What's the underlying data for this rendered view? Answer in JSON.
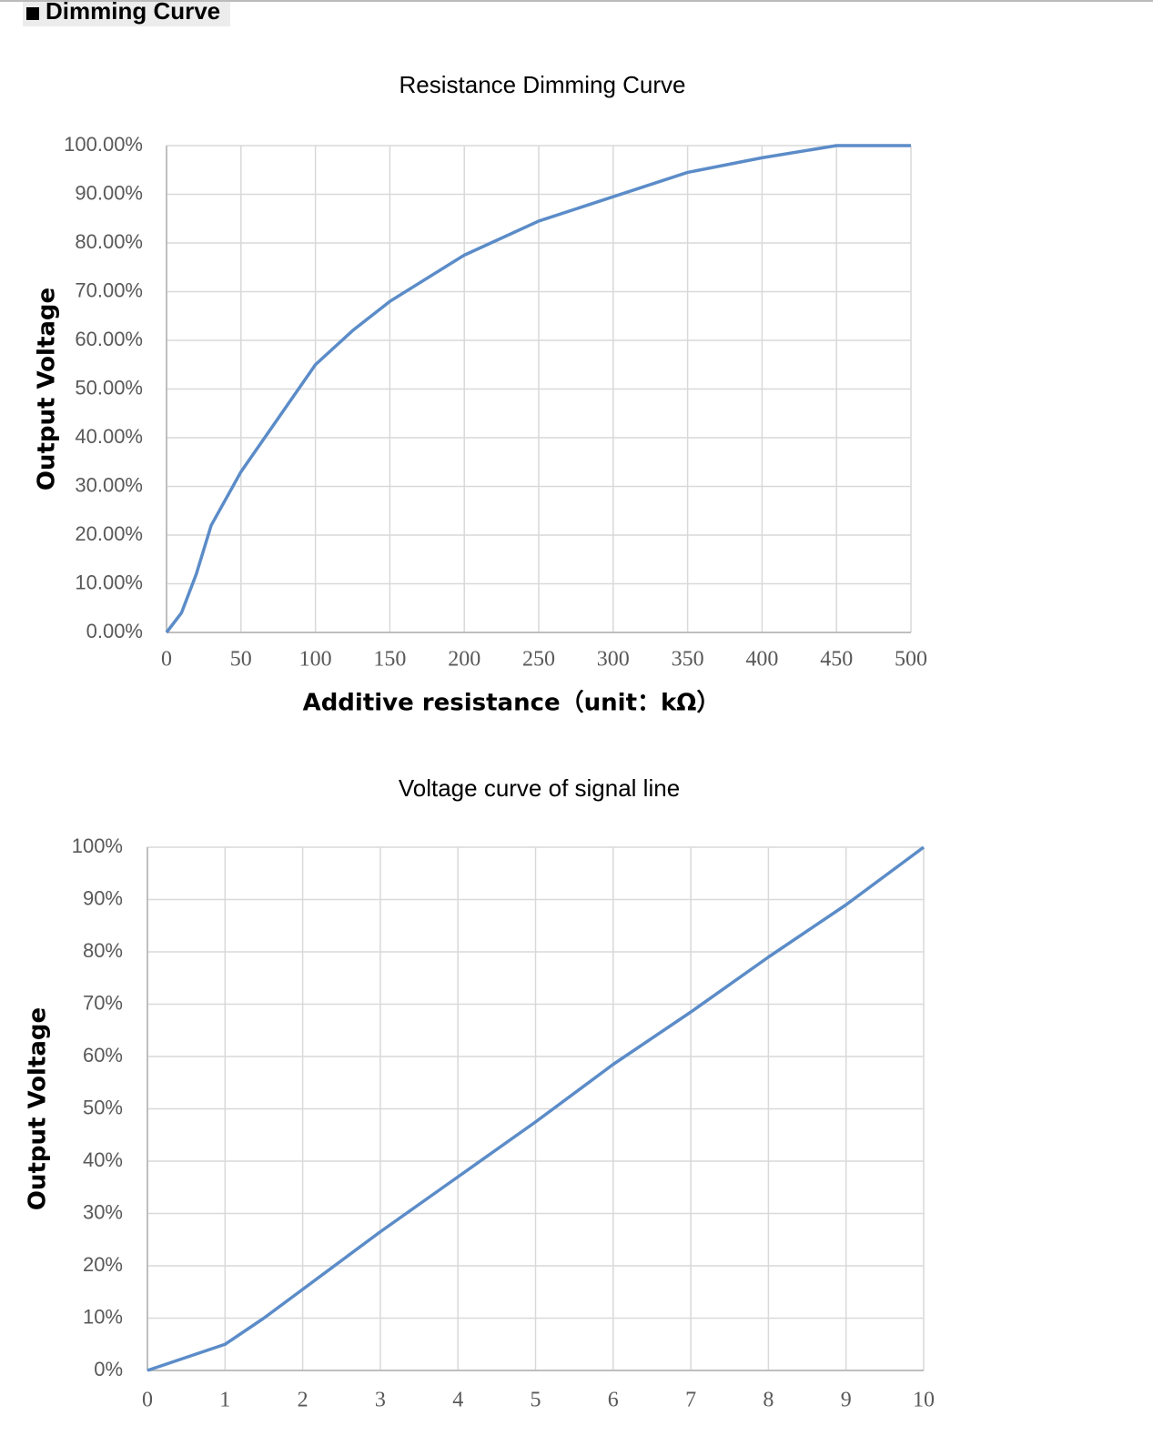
{
  "header": {
    "title": "Dimming Curve"
  },
  "chart_data": [
    {
      "type": "line",
      "title": "Resistance Dimming Curve",
      "x_label": "Additive resistance（unit：kΩ）",
      "y_label": "Output Voltage",
      "x": [
        0,
        10,
        20,
        30,
        50,
        75,
        100,
        125,
        150,
        200,
        250,
        300,
        350,
        400,
        450,
        500
      ],
      "values": [
        0,
        4,
        12,
        22,
        33,
        44,
        55,
        62,
        68,
        77.5,
        84.5,
        89.5,
        94.5,
        97.5,
        100,
        100
      ],
      "color": "#5b8cc8",
      "grid": true,
      "xlim": [
        0,
        500
      ],
      "xticks": [
        0,
        50,
        100,
        150,
        200,
        250,
        300,
        350,
        400,
        450,
        500
      ],
      "ylim": [
        0,
        100
      ],
      "yticks": [
        {
          "value": 0,
          "label": "0.00%"
        },
        {
          "value": 10,
          "label": "10.00%"
        },
        {
          "value": 20,
          "label": "20.00%"
        },
        {
          "value": 30,
          "label": "30.00%"
        },
        {
          "value": 40,
          "label": "40.00%"
        },
        {
          "value": 50,
          "label": "50.00%"
        },
        {
          "value": 60,
          "label": "60.00%"
        },
        {
          "value": 70,
          "label": "70.00%"
        },
        {
          "value": 80,
          "label": "80.00%"
        },
        {
          "value": 90,
          "label": "90.00%"
        },
        {
          "value": 100,
          "label": "100.00%"
        }
      ]
    },
    {
      "type": "line",
      "title": "Voltage curve of signal line",
      "y_label": "Output Voltage",
      "x": [
        0,
        0.5,
        1,
        1.5,
        2,
        3,
        4,
        5,
        6,
        7,
        8,
        9,
        10
      ],
      "values": [
        0,
        2.5,
        5,
        10,
        15.5,
        26.5,
        37,
        47.5,
        58.5,
        68.5,
        79,
        89,
        100
      ],
      "color": "#5b8cc8",
      "grid": true,
      "xlim": [
        0,
        10
      ],
      "xticks": [
        0,
        1,
        2,
        3,
        4,
        5,
        6,
        7,
        8,
        9,
        10
      ],
      "ylim": [
        0,
        100
      ],
      "yticks": [
        {
          "value": 0,
          "label": "0%"
        },
        {
          "value": 10,
          "label": "10%"
        },
        {
          "value": 20,
          "label": "20%"
        },
        {
          "value": 30,
          "label": "30%"
        },
        {
          "value": 40,
          "label": "40%"
        },
        {
          "value": 50,
          "label": "50%"
        },
        {
          "value": 60,
          "label": "60%"
        },
        {
          "value": 70,
          "label": "70%"
        },
        {
          "value": 80,
          "label": "80%"
        },
        {
          "value": 90,
          "label": "90%"
        },
        {
          "value": 100,
          "label": "100%"
        }
      ]
    }
  ]
}
